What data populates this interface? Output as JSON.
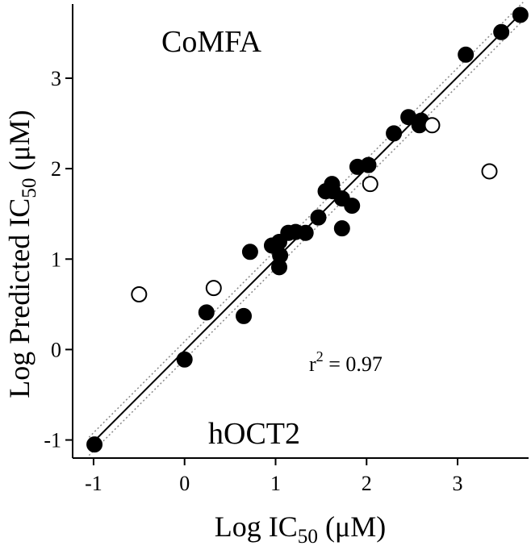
{
  "chart_data": {
    "type": "scatter",
    "xlabel": {
      "text": "Log IC",
      "sub": "50",
      "rest": " (μM)"
    },
    "ylabel": {
      "text": "Log Predicted IC",
      "sub": "50",
      "rest": " (μM)"
    },
    "annotations": {
      "method": "CoMFA",
      "target": "hOCT2",
      "r2": {
        "text": "r",
        "sup": "2",
        "rest": " = 0.97"
      }
    },
    "xlim": [
      -1.23,
      3.78
    ],
    "ylim": [
      -1.2,
      3.82
    ],
    "xticks": [
      -1,
      0,
      1,
      2,
      3
    ],
    "yticks": [
      -1,
      0,
      1,
      2,
      3
    ],
    "series": [
      {
        "color": "#000000",
        "fill": "#000000",
        "x": [
          -0.99,
          0.0,
          0.24,
          0.65,
          0.72,
          0.96,
          1.04,
          1.05,
          1.04,
          1.14,
          1.22,
          1.33,
          1.47,
          1.55,
          1.62,
          1.63,
          1.73,
          1.73,
          1.84,
          1.9,
          2.02,
          2.3,
          2.46,
          2.58,
          2.6,
          3.09,
          3.48,
          3.69
        ],
        "values": [
          -1.05,
          -0.11,
          0.41,
          0.37,
          1.08,
          1.15,
          1.19,
          1.04,
          0.91,
          1.29,
          1.3,
          1.29,
          1.46,
          1.75,
          1.83,
          1.75,
          1.67,
          1.34,
          1.59,
          2.02,
          2.04,
          2.39,
          2.57,
          2.48,
          2.53,
          3.26,
          3.51,
          3.7
        ]
      },
      {
        "color": "#000000",
        "fill": "#ffffff",
        "x": [
          -0.5,
          0.32,
          2.04,
          2.72,
          3.35
        ],
        "values": [
          0.61,
          0.68,
          1.83,
          2.48,
          1.97
        ]
      }
    ],
    "lines": [
      {
        "style": "solid",
        "x": [
          -1.05,
          3.72
        ],
        "values": [
          -1.07,
          3.74
        ]
      },
      {
        "style": "dotted",
        "x": [
          -1.05,
          3.72
        ],
        "values": [
          -0.97,
          3.84
        ]
      },
      {
        "style": "dotted",
        "x": [
          -1.05,
          3.72
        ],
        "values": [
          -1.17,
          3.64
        ]
      }
    ]
  }
}
